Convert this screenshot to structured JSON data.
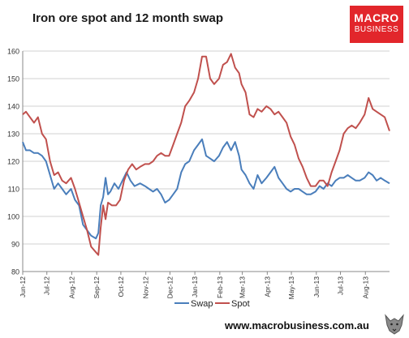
{
  "logo": {
    "line1": "MACRO",
    "line2": "BUSINESS"
  },
  "footer": {
    "url": "www.macrobusiness.com.au"
  },
  "chart_data": {
    "type": "line",
    "title": "Iron ore spot and 12 month swap",
    "xlabel": "",
    "ylabel": "",
    "ylim": [
      80,
      160
    ],
    "yticks": [
      80,
      90,
      100,
      110,
      120,
      130,
      140,
      150,
      160
    ],
    "grid": true,
    "legend": "bottom",
    "x_tick_labels": [
      "Jun-12",
      "Jul-12",
      "Aug-12",
      "Sep-12",
      "Oct-12",
      "Nov-12",
      "Dec-12",
      "Jan-13",
      "Feb-13",
      "Mar-13",
      "Apr-13",
      "May-13",
      "Jun-13",
      "Jul-13",
      "Aug-13"
    ],
    "x_start": "2012-06-01",
    "x_end": "2013-08-31",
    "series": [
      {
        "name": "Swap",
        "color": "#4a7ebb",
        "points": [
          [
            "2012-06-01",
            127
          ],
          [
            "2012-06-05",
            124
          ],
          [
            "2012-06-10",
            124
          ],
          [
            "2012-06-15",
            123
          ],
          [
            "2012-06-20",
            123
          ],
          [
            "2012-06-25",
            122
          ],
          [
            "2012-06-30",
            120
          ],
          [
            "2012-07-05",
            115
          ],
          [
            "2012-07-10",
            110
          ],
          [
            "2012-07-15",
            112
          ],
          [
            "2012-07-20",
            110
          ],
          [
            "2012-07-25",
            108
          ],
          [
            "2012-07-31",
            110
          ],
          [
            "2012-08-05",
            106
          ],
          [
            "2012-08-10",
            104
          ],
          [
            "2012-08-15",
            97
          ],
          [
            "2012-08-20",
            95
          ],
          [
            "2012-08-25",
            93
          ],
          [
            "2012-08-31",
            92
          ],
          [
            "2012-09-03",
            94
          ],
          [
            "2012-09-06",
            104
          ],
          [
            "2012-09-09",
            107
          ],
          [
            "2012-09-12",
            114
          ],
          [
            "2012-09-15",
            108
          ],
          [
            "2012-09-18",
            109
          ],
          [
            "2012-09-23",
            112
          ],
          [
            "2012-09-28",
            110
          ],
          [
            "2012-10-03",
            113
          ],
          [
            "2012-10-08",
            116
          ],
          [
            "2012-10-13",
            113
          ],
          [
            "2012-10-18",
            111
          ],
          [
            "2012-10-25",
            112
          ],
          [
            "2012-10-31",
            111
          ],
          [
            "2012-11-05",
            110
          ],
          [
            "2012-11-10",
            109
          ],
          [
            "2012-11-15",
            110
          ],
          [
            "2012-11-20",
            108
          ],
          [
            "2012-11-25",
            105
          ],
          [
            "2012-11-30",
            106
          ],
          [
            "2012-12-05",
            108
          ],
          [
            "2012-12-10",
            110
          ],
          [
            "2012-12-15",
            116
          ],
          [
            "2012-12-20",
            119
          ],
          [
            "2012-12-25",
            120
          ],
          [
            "2012-12-31",
            124
          ],
          [
            "2013-01-05",
            126
          ],
          [
            "2013-01-10",
            128
          ],
          [
            "2013-01-15",
            122
          ],
          [
            "2013-01-20",
            121
          ],
          [
            "2013-01-25",
            120
          ],
          [
            "2013-01-31",
            122
          ],
          [
            "2013-02-05",
            125
          ],
          [
            "2013-02-10",
            127
          ],
          [
            "2013-02-15",
            124
          ],
          [
            "2013-02-20",
            127
          ],
          [
            "2013-02-25",
            122
          ],
          [
            "2013-02-28",
            117
          ],
          [
            "2013-03-05",
            115
          ],
          [
            "2013-03-10",
            112
          ],
          [
            "2013-03-15",
            110
          ],
          [
            "2013-03-20",
            115
          ],
          [
            "2013-03-25",
            112
          ],
          [
            "2013-03-31",
            114
          ],
          [
            "2013-04-05",
            116
          ],
          [
            "2013-04-10",
            118
          ],
          [
            "2013-04-15",
            114
          ],
          [
            "2013-04-20",
            112
          ],
          [
            "2013-04-25",
            110
          ],
          [
            "2013-04-30",
            109
          ],
          [
            "2013-05-05",
            110
          ],
          [
            "2013-05-10",
            110
          ],
          [
            "2013-05-15",
            109
          ],
          [
            "2013-05-20",
            108
          ],
          [
            "2013-05-25",
            108
          ],
          [
            "2013-05-31",
            109
          ],
          [
            "2013-06-05",
            111
          ],
          [
            "2013-06-10",
            110
          ],
          [
            "2013-06-15",
            112
          ],
          [
            "2013-06-20",
            111
          ],
          [
            "2013-06-25",
            113
          ],
          [
            "2013-06-30",
            114
          ],
          [
            "2013-07-05",
            114
          ],
          [
            "2013-07-10",
            115
          ],
          [
            "2013-07-15",
            114
          ],
          [
            "2013-07-20",
            113
          ],
          [
            "2013-07-25",
            113
          ],
          [
            "2013-07-31",
            114
          ],
          [
            "2013-08-05",
            116
          ],
          [
            "2013-08-10",
            115
          ],
          [
            "2013-08-15",
            113
          ],
          [
            "2013-08-20",
            114
          ],
          [
            "2013-08-25",
            113
          ],
          [
            "2013-08-31",
            112
          ]
        ]
      },
      {
        "name": "Spot",
        "color": "#c0504d",
        "points": [
          [
            "2012-06-01",
            137
          ],
          [
            "2012-06-05",
            138
          ],
          [
            "2012-06-10",
            136
          ],
          [
            "2012-06-15",
            134
          ],
          [
            "2012-06-20",
            136
          ],
          [
            "2012-06-25",
            130
          ],
          [
            "2012-06-30",
            128
          ],
          [
            "2012-07-05",
            120
          ],
          [
            "2012-07-10",
            115
          ],
          [
            "2012-07-15",
            116
          ],
          [
            "2012-07-20",
            113
          ],
          [
            "2012-07-25",
            112
          ],
          [
            "2012-07-31",
            114
          ],
          [
            "2012-08-05",
            110
          ],
          [
            "2012-08-10",
            105
          ],
          [
            "2012-08-15",
            100
          ],
          [
            "2012-08-20",
            95
          ],
          [
            "2012-08-25",
            89
          ],
          [
            "2012-08-31",
            87
          ],
          [
            "2012-09-03",
            86
          ],
          [
            "2012-09-06",
            96
          ],
          [
            "2012-09-09",
            104
          ],
          [
            "2012-09-12",
            99
          ],
          [
            "2012-09-15",
            105
          ],
          [
            "2012-09-20",
            104
          ],
          [
            "2012-09-25",
            104
          ],
          [
            "2012-09-30",
            106
          ],
          [
            "2012-10-05",
            113
          ],
          [
            "2012-10-10",
            117
          ],
          [
            "2012-10-15",
            119
          ],
          [
            "2012-10-20",
            117
          ],
          [
            "2012-10-25",
            118
          ],
          [
            "2012-10-31",
            119
          ],
          [
            "2012-11-05",
            119
          ],
          [
            "2012-11-10",
            120
          ],
          [
            "2012-11-15",
            122
          ],
          [
            "2012-11-20",
            123
          ],
          [
            "2012-11-25",
            122
          ],
          [
            "2012-11-30",
            122
          ],
          [
            "2012-12-05",
            126
          ],
          [
            "2012-12-10",
            130
          ],
          [
            "2012-12-15",
            134
          ],
          [
            "2012-12-20",
            140
          ],
          [
            "2012-12-25",
            142
          ],
          [
            "2012-12-31",
            145
          ],
          [
            "2013-01-05",
            150
          ],
          [
            "2013-01-10",
            158
          ],
          [
            "2013-01-15",
            158
          ],
          [
            "2013-01-20",
            150
          ],
          [
            "2013-01-25",
            148
          ],
          [
            "2013-01-31",
            150
          ],
          [
            "2013-02-05",
            155
          ],
          [
            "2013-02-10",
            156
          ],
          [
            "2013-02-15",
            159
          ],
          [
            "2013-02-20",
            154
          ],
          [
            "2013-02-25",
            152
          ],
          [
            "2013-02-28",
            148
          ],
          [
            "2013-03-05",
            145
          ],
          [
            "2013-03-10",
            137
          ],
          [
            "2013-03-15",
            136
          ],
          [
            "2013-03-20",
            139
          ],
          [
            "2013-03-25",
            138
          ],
          [
            "2013-03-31",
            140
          ],
          [
            "2013-04-05",
            139
          ],
          [
            "2013-04-10",
            137
          ],
          [
            "2013-04-15",
            138
          ],
          [
            "2013-04-20",
            136
          ],
          [
            "2013-04-25",
            134
          ],
          [
            "2013-04-30",
            129
          ],
          [
            "2013-05-05",
            126
          ],
          [
            "2013-05-10",
            121
          ],
          [
            "2013-05-15",
            118
          ],
          [
            "2013-05-20",
            114
          ],
          [
            "2013-05-25",
            111
          ],
          [
            "2013-05-31",
            111
          ],
          [
            "2013-06-05",
            113
          ],
          [
            "2013-06-10",
            113
          ],
          [
            "2013-06-15",
            111
          ],
          [
            "2013-06-20",
            116
          ],
          [
            "2013-06-25",
            120
          ],
          [
            "2013-06-30",
            124
          ],
          [
            "2013-07-05",
            130
          ],
          [
            "2013-07-10",
            132
          ],
          [
            "2013-07-15",
            133
          ],
          [
            "2013-07-20",
            132
          ],
          [
            "2013-07-25",
            134
          ],
          [
            "2013-07-31",
            137
          ],
          [
            "2013-08-05",
            143
          ],
          [
            "2013-08-10",
            139
          ],
          [
            "2013-08-15",
            138
          ],
          [
            "2013-08-20",
            137
          ],
          [
            "2013-08-25",
            136
          ],
          [
            "2013-08-31",
            131
          ]
        ]
      }
    ]
  }
}
